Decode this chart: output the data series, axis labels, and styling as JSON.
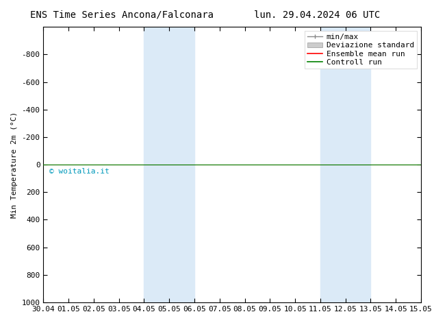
{
  "title_left": "ENS Time Series Ancona/Falconara",
  "title_right": "lun. 29.04.2024 06 UTC",
  "ylabel": "Min Temperature 2m (°C)",
  "xtick_labels": [
    "30.04",
    "01.05",
    "02.05",
    "03.05",
    "04.05",
    "05.05",
    "06.05",
    "07.05",
    "08.05",
    "09.05",
    "10.05",
    "11.05",
    "12.05",
    "13.05",
    "14.05",
    "15.05"
  ],
  "ytick_values": [
    -800,
    -600,
    -400,
    -200,
    0,
    200,
    400,
    600,
    800,
    1000
  ],
  "ytick_labels": [
    "-800",
    "-600",
    "-400",
    "-200",
    "0",
    "200",
    "400",
    "600",
    "800",
    "1000"
  ],
  "shaded_regions": [
    {
      "xstart": 4,
      "xend": 5,
      "color": "#dbeaf7"
    },
    {
      "xstart": 5,
      "xend": 6,
      "color": "#dbeaf7"
    },
    {
      "xstart": 11,
      "xend": 12,
      "color": "#dbeaf7"
    },
    {
      "xstart": 12,
      "xend": 13,
      "color": "#dbeaf7"
    }
  ],
  "green_line_y": 0,
  "red_line_y": 0,
  "watermark": "© woitalia.it",
  "watermark_color": "#0099bb",
  "background_color": "#ffffff",
  "plot_bg_color": "#ffffff",
  "title_fontsize": 10,
  "axis_label_fontsize": 8,
  "tick_fontsize": 8,
  "legend_fontsize": 8
}
